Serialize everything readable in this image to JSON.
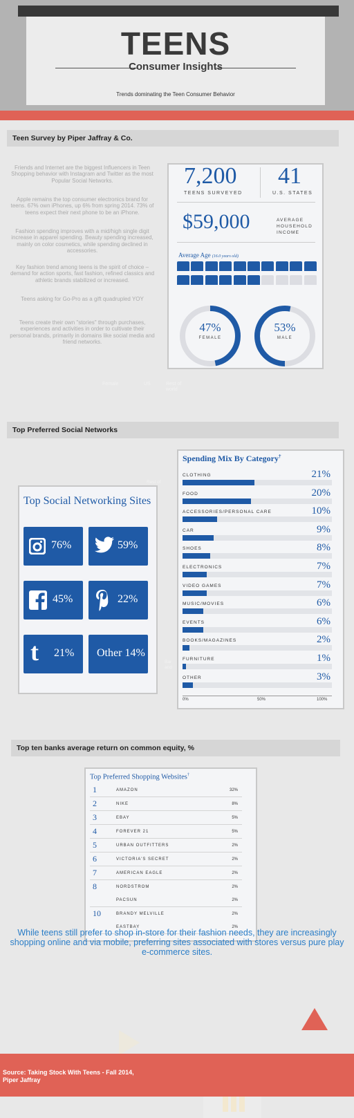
{
  "header": {
    "title": "TEENS",
    "subtitle": "Consumer Insights",
    "tagline": "Trends dominating the Teen Consumer Behavior"
  },
  "survey": {
    "section_title": "Teen Survey by Piper Jaffray & Co.",
    "paragraphs": [
      "Friends and Internet are the biggest Influencers in Teen Shopping behavior with Instagram and Twitter as the most Popular Social Networks.",
      "Apple remains the top consumer electronics brand for teens. 67% own iPhones, up 6% from spring 2014. 73% of teens expect their next phone to be an iPhone.",
      "Fashion spending improves with a mid/high single digit increase in apparel spending. Beauty spending increased, mainly on color cosmetics, while spending declined in accessories.",
      "Key fashion trend among teens is the spirit of choice – demand for action sports, fast fashion, refined classics and athletic brands stabilized or increased.",
      "Teens asking for Go-Pro as a gift quadrupled YOY",
      "Teens create their own \"stories\" through purchases, experiences and activities in order to cultivate their personal brands, primarily in domains like social media and friend networks."
    ],
    "card": {
      "teens_surveyed_value": "7,200",
      "teens_surveyed_label": "TEENS SURVEYED",
      "states_value": "41",
      "states_label": "U.S. STATES",
      "income_value": "$59,000",
      "income_label_1": "AVERAGE",
      "income_label_2": "HOUSEHOLD",
      "income_label_3": "INCOME",
      "age_title": "Average Age",
      "age_note": "(16.0 years old)",
      "age_fraction": 0.8,
      "female_pct": "47%",
      "female_label": "FEMALE",
      "female_value": 47,
      "male_pct": "53%",
      "male_label": "MALE",
      "male_value": 53
    },
    "faint_labels": [
      "Female",
      "US",
      "Rest of",
      "world"
    ]
  },
  "social": {
    "section_title": "Top Preferred Social Networks",
    "card_title": "Top Social Networking Sites",
    "tiles": [
      {
        "icon": "instagram-icon",
        "pct": "76%"
      },
      {
        "icon": "twitter-icon",
        "pct": "59%"
      },
      {
        "icon": "facebook-icon",
        "pct": "45%"
      },
      {
        "icon": "pinterest-icon",
        "pct": "22%"
      },
      {
        "icon": "tumblr-icon",
        "pct": "21%"
      },
      {
        "icon": "",
        "label": "Other",
        "pct": "14%"
      }
    ],
    "faint_labels": [
      "Rest of",
      "world",
      "Bar",
      "and"
    ]
  },
  "spending": {
    "title": "Spending Mix By Category",
    "title_mark": "†",
    "categories": [
      {
        "label": "CLOTHING",
        "pct": "21%",
        "value": 21
      },
      {
        "label": "FOOD",
        "pct": "20%",
        "value": 20
      },
      {
        "label": "ACCESSORIES/PERSONAL CARE",
        "pct": "10%",
        "value": 10
      },
      {
        "label": "CAR",
        "pct": "9%",
        "value": 9
      },
      {
        "label": "SHOES",
        "pct": "8%",
        "value": 8
      },
      {
        "label": "ELECTRONICS",
        "pct": "7%",
        "value": 7
      },
      {
        "label": "VIDEO GAMES",
        "pct": "7%",
        "value": 7
      },
      {
        "label": "MUSIC/MOVIES",
        "pct": "6%",
        "value": 6
      },
      {
        "label": "EVENTS",
        "pct": "6%",
        "value": 6
      },
      {
        "label": "BOOKS/MAGAZINES",
        "pct": "2%",
        "value": 2
      },
      {
        "label": "FURNITURE",
        "pct": "1%",
        "value": 1
      },
      {
        "label": "OTHER",
        "pct": "3%",
        "value": 3
      }
    ],
    "axis_ticks": [
      "0%",
      "50%",
      "100%"
    ],
    "axis_max": 100
  },
  "shopping": {
    "section_title": "Top ten banks average return on common equity, %",
    "title": "Top Preferred Shopping Websites",
    "title_mark": "†",
    "rows": [
      {
        "rank": "1",
        "items": [
          {
            "name": "AMAZON",
            "pct": "32%"
          }
        ]
      },
      {
        "rank": "2",
        "items": [
          {
            "name": "NIKE",
            "pct": "8%"
          }
        ]
      },
      {
        "rank": "3",
        "items": [
          {
            "name": "EBAY",
            "pct": "5%"
          }
        ]
      },
      {
        "rank": "4",
        "items": [
          {
            "name": "FOREVER 21",
            "pct": "5%"
          }
        ]
      },
      {
        "rank": "5",
        "items": [
          {
            "name": "URBAN OUTFITTERS",
            "pct": "2%"
          }
        ]
      },
      {
        "rank": "6",
        "items": [
          {
            "name": "VICTORIA'S SECRET",
            "pct": "2%"
          }
        ]
      },
      {
        "rank": "7",
        "items": [
          {
            "name": "AMERICAN EAGLE",
            "pct": "2%"
          }
        ]
      },
      {
        "rank": "8",
        "items": [
          {
            "name": "NORDSTROM",
            "pct": "2%"
          },
          {
            "name": "PACSUN",
            "pct": "2%"
          }
        ]
      },
      {
        "rank": "10",
        "items": [
          {
            "name": "BRANDY MELVILLE",
            "pct": "2%"
          },
          {
            "name": "EASTBAY",
            "pct": "2%"
          }
        ]
      }
    ]
  },
  "closing_text": "While teens still prefer to shop in-store for their fashion needs, they are increasingly shopping online and via mobile, preferring sites associated with stores versus pure play e-commerce sites.",
  "footer": {
    "source_line1": "Source: Taking Stock With Teens - Fall 2014,",
    "source_line2": "Piper Jaffray"
  },
  "colors": {
    "accent_blue": "#1f5aa6",
    "accent_red": "#e06256",
    "background": "#e8e8e8"
  }
}
